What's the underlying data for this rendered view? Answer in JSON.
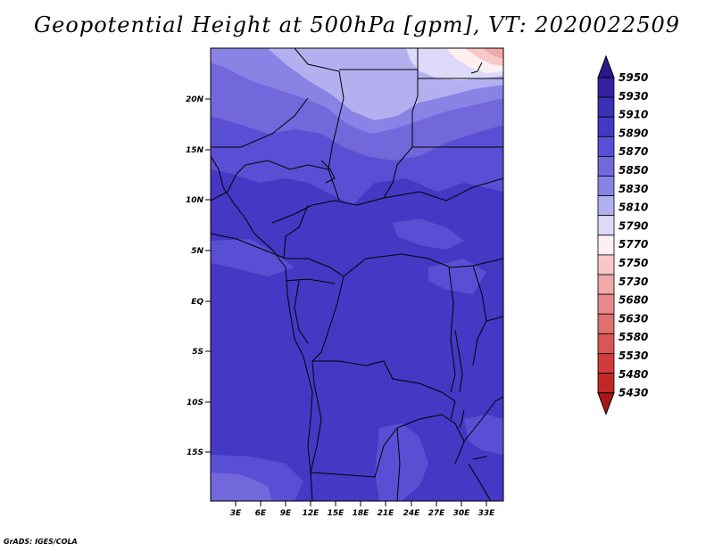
{
  "title": "Geopotential Height at 500hPa [gpm], VT: 2020022509",
  "credit": "GrADS: IGES/COLA",
  "map": {
    "lat_labels": [
      "20N",
      "15N",
      "10N",
      "5N",
      "EQ",
      "5S",
      "10S",
      "15S"
    ],
    "lon_labels": [
      "3E",
      "6E",
      "9E",
      "12E",
      "15E",
      "18E",
      "21E",
      "24E",
      "27E",
      "30E",
      "33E"
    ]
  },
  "colorbar": {
    "levels": [
      {
        "label": "5950",
        "color": "#2a1a8a"
      },
      {
        "label": "5930",
        "color": "#3420a0"
      },
      {
        "label": "5910",
        "color": "#3c2fb4"
      },
      {
        "label": "5890",
        "color": "#4438c4"
      },
      {
        "label": "5870",
        "color": "#5a4fd4"
      },
      {
        "label": "5850",
        "color": "#7268dc"
      },
      {
        "label": "5830",
        "color": "#8a83e6"
      },
      {
        "label": "5810",
        "color": "#b4b0f0"
      },
      {
        "label": "5790",
        "color": "#dcdaf8"
      },
      {
        "label": "5770",
        "color": "#fdf0f0"
      },
      {
        "label": "5750",
        "color": "#f8c8c8"
      },
      {
        "label": "5730",
        "color": "#f0a8a8"
      },
      {
        "label": "5680",
        "color": "#e88a8a"
      },
      {
        "label": "5630",
        "color": "#e07070"
      },
      {
        "label": "5580",
        "color": "#d85656"
      },
      {
        "label": "5530",
        "color": "#d03c3c"
      },
      {
        "label": "5480",
        "color": "#c02828"
      },
      {
        "label": "5430",
        "color": "#a81818"
      }
    ]
  }
}
